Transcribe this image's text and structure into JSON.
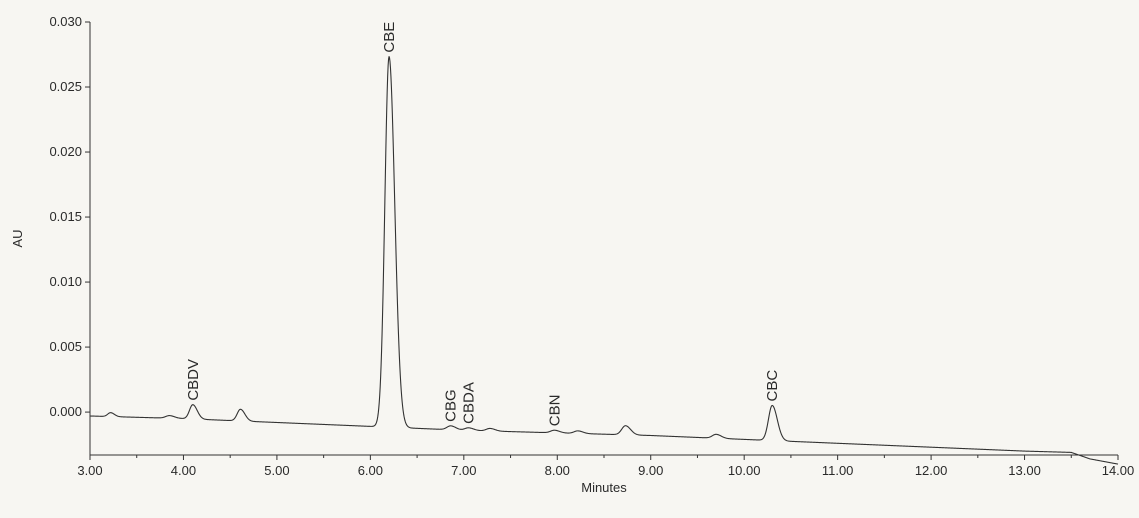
{
  "chart_data": {
    "type": "line",
    "title": "",
    "xlabel": "Minutes",
    "ylabel": "AU",
    "xlim": [
      3.0,
      14.0
    ],
    "ylim": [
      -0.0033,
      0.03
    ],
    "grid": false,
    "x_ticks": [
      3.0,
      4.0,
      5.0,
      6.0,
      7.0,
      8.0,
      9.0,
      10.0,
      11.0,
      12.0,
      13.0,
      14.0
    ],
    "x_tick_labels": [
      "3.00",
      "4.00",
      "5.00",
      "6.00",
      "7.00",
      "8.00",
      "9.00",
      "10.00",
      "11.00",
      "12.00",
      "13.00",
      "14.00"
    ],
    "y_ticks": [
      0.0,
      0.005,
      0.01,
      0.015,
      0.02,
      0.025,
      0.03
    ],
    "y_tick_labels": [
      "0.000",
      "0.005",
      "0.010",
      "0.015",
      "0.020",
      "0.025",
      "0.030"
    ],
    "baseline": [
      [
        3.0,
        -0.0003
      ],
      [
        4.0,
        -0.0005
      ],
      [
        5.0,
        -0.0008
      ],
      [
        6.0,
        -0.0011
      ],
      [
        7.0,
        -0.0014
      ],
      [
        8.0,
        -0.0016
      ],
      [
        9.0,
        -0.0018
      ],
      [
        10.0,
        -0.0021
      ],
      [
        11.0,
        -0.0024
      ],
      [
        12.0,
        -0.0027
      ],
      [
        13.0,
        -0.003
      ],
      [
        13.5,
        -0.0031
      ],
      [
        13.7,
        -0.0036
      ],
      [
        14.0,
        -0.004
      ]
    ],
    "peaks": [
      {
        "label": "",
        "rt": 3.22,
        "height": 0.0003,
        "width": 0.03
      },
      {
        "label": "",
        "rt": 3.85,
        "height": 0.0002,
        "width": 0.04
      },
      {
        "label": "CBDV",
        "rt": 4.1,
        "height": 0.0011,
        "width": 0.035
      },
      {
        "label": "",
        "rt": 4.61,
        "height": 0.0009,
        "width": 0.035
      },
      {
        "label": "CBE",
        "rt": 6.2,
        "height": 0.0285,
        "width": 0.045
      },
      {
        "label": "CBG",
        "rt": 6.86,
        "height": 0.0003,
        "width": 0.04
      },
      {
        "label": "CBDA",
        "rt": 7.05,
        "height": 0.0002,
        "width": 0.04
      },
      {
        "label": "",
        "rt": 7.28,
        "height": 0.0002,
        "width": 0.04
      },
      {
        "label": "CBN",
        "rt": 7.97,
        "height": 0.0002,
        "width": 0.04
      },
      {
        "label": "",
        "rt": 8.22,
        "height": 0.0002,
        "width": 0.04
      },
      {
        "label": "",
        "rt": 8.73,
        "height": 0.0007,
        "width": 0.04
      },
      {
        "label": "",
        "rt": 9.7,
        "height": 0.0003,
        "width": 0.04
      },
      {
        "label": "CBC",
        "rt": 10.3,
        "height": 0.0027,
        "width": 0.04
      }
    ]
  }
}
